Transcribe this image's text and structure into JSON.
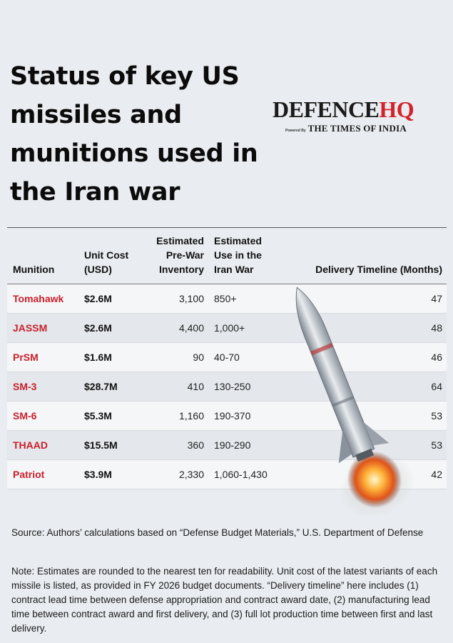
{
  "title": "Status of key US missiles and munitions used in the Iran war",
  "logo": {
    "part1": "DEFENCE",
    "part2": "HQ",
    "powered_by": "Powered By",
    "publisher": "THE TIMES OF INDIA"
  },
  "table": {
    "headers": {
      "munition": "Munition",
      "unit_cost": "Unit Cost (USD)",
      "inventory": "Estimated Pre-War Inventory",
      "use": "Estimated Use in the Iran War",
      "timeline": "Delivery Timeline (Months)"
    },
    "rows": [
      {
        "munition": "Tomahawk",
        "cost": "$2.6M",
        "inventory": "3,100",
        "use": "850+",
        "timeline": "47"
      },
      {
        "munition": "JASSM",
        "cost": "$2.6M",
        "inventory": "4,400",
        "use": "1,000+",
        "timeline": "48"
      },
      {
        "munition": "PrSM",
        "cost": "$1.6M",
        "inventory": "90",
        "use": "40-70",
        "timeline": "46"
      },
      {
        "munition": "SM-3",
        "cost": "$28.7M",
        "inventory": "410",
        "use": "130-250",
        "timeline": "64"
      },
      {
        "munition": "SM-6",
        "cost": "$5.3M",
        "inventory": "1,160",
        "use": "190-370",
        "timeline": "53"
      },
      {
        "munition": "THAAD",
        "cost": "$15.5M",
        "inventory": "360",
        "use": "190-290",
        "timeline": "53"
      },
      {
        "munition": "Patriot",
        "cost": "$3.9M",
        "inventory": "2,330",
        "use": "1,060-1,430",
        "timeline": "42"
      }
    ]
  },
  "source": "Source: Authors’ calculations based on “Defense Budget Materials,” U.S. Department of Defense",
  "note": "Note: Estimates are rounded to the nearest ten for readability. Unit cost of the latest variants of each missile is listed, as provided in FY 2026 budget documents. “Delivery timeline” here includes (1) contract lead time between defense appropriation and contract award date, (2) manufacturing lead time between contract award and first delivery, and (3) full lot production time between first and last delivery.",
  "colors": {
    "accent_red": "#c8202b",
    "logo_red": "#d3222a",
    "background": "#e9ecf0"
  }
}
